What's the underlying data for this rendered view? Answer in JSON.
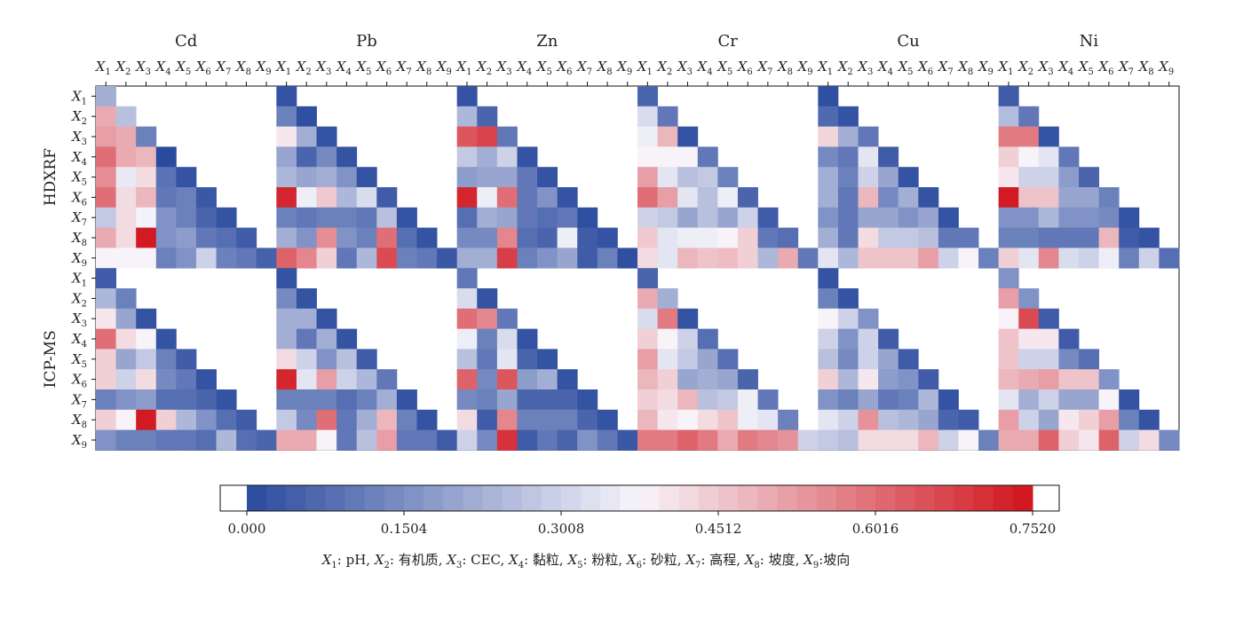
{
  "chart_data": {
    "type": "heatmap",
    "metals": [
      "Cd",
      "Pb",
      "Zn",
      "Cr",
      "Cu",
      "Ni"
    ],
    "methods": [
      "HDXRF",
      "ICP-MS"
    ],
    "variables": [
      "X1",
      "X2",
      "X3",
      "X4",
      "X5",
      "X6",
      "X7",
      "X8",
      "X9"
    ],
    "variable_prefix": "X",
    "variable_subscripts": [
      "1",
      "2",
      "3",
      "4",
      "5",
      "6",
      "7",
      "8",
      "9"
    ],
    "colorbar": {
      "vmin": 0.0,
      "vmax": 0.752,
      "ticks": [
        0.0,
        0.1504,
        0.3008,
        0.4512,
        0.6016,
        0.752
      ],
      "tick_labels": [
        "0.000",
        "0.1504",
        "0.3008",
        "0.4512",
        "0.6016",
        "0.7520"
      ],
      "color_low": "#2a4a9e",
      "color_mid": "#f7f5fb",
      "color_high": "#d0131c",
      "mid_value": 0.376
    },
    "legend_text": {
      "parts": [
        {
          "sub": "1",
          "label": ": pH, "
        },
        {
          "sub": "2",
          "label": ": 有机质, "
        },
        {
          "sub": "3",
          "label": ": CEC, "
        },
        {
          "sub": "4",
          "label": ": 黏粒, "
        },
        {
          "sub": "5",
          "label": ": 粉粒, "
        },
        {
          "sub": "6",
          "label": ": 砂粒, "
        },
        {
          "sub": "7",
          "label": ": 高程, "
        },
        {
          "sub": "8",
          "label": ": 坡度, "
        },
        {
          "sub": "9",
          "label": ":坡向"
        }
      ]
    },
    "matrices": {
      "HDXRF": {
        "Cd": [
          [
            0.22
          ],
          [
            0.5,
            0.26
          ],
          [
            0.52,
            0.5,
            0.12
          ],
          [
            0.6,
            0.5,
            0.48,
            0.0
          ],
          [
            0.55,
            0.35,
            0.42,
            0.09,
            0.02
          ],
          [
            0.6,
            0.42,
            0.48,
            0.1,
            0.12,
            0.03
          ],
          [
            0.28,
            0.42,
            0.37,
            0.16,
            0.12,
            0.06,
            0.02
          ],
          [
            0.5,
            0.42,
            0.74,
            0.16,
            0.18,
            0.1,
            0.08,
            0.04
          ],
          [
            0.38,
            0.38,
            0.38,
            0.12,
            0.16,
            0.3,
            0.12,
            0.1,
            0.05
          ]
        ],
        "Pb": [
          [
            0.02
          ],
          [
            0.12,
            0.01
          ],
          [
            0.4,
            0.22,
            0.02
          ],
          [
            0.2,
            0.06,
            0.14,
            0.02
          ],
          [
            0.24,
            0.2,
            0.22,
            0.16,
            0.02
          ],
          [
            0.72,
            0.36,
            0.45,
            0.24,
            0.32,
            0.04
          ],
          [
            0.12,
            0.1,
            0.12,
            0.12,
            0.1,
            0.26,
            0.02
          ],
          [
            0.22,
            0.16,
            0.55,
            0.16,
            0.12,
            0.6,
            0.08,
            0.02
          ],
          [
            0.62,
            0.56,
            0.44,
            0.1,
            0.24,
            0.66,
            0.12,
            0.1,
            0.03
          ]
        ],
        "Zn": [
          [
            0.02
          ],
          [
            0.24,
            0.06
          ],
          [
            0.64,
            0.67,
            0.1
          ],
          [
            0.28,
            0.22,
            0.3,
            0.02
          ],
          [
            0.18,
            0.2,
            0.2,
            0.1,
            0.02
          ],
          [
            0.72,
            0.36,
            0.6,
            0.1,
            0.16,
            0.02
          ],
          [
            0.08,
            0.22,
            0.2,
            0.1,
            0.08,
            0.1,
            0.01
          ],
          [
            0.14,
            0.14,
            0.56,
            0.08,
            0.06,
            0.36,
            0.04,
            0.02
          ],
          [
            0.22,
            0.22,
            0.68,
            0.12,
            0.16,
            0.2,
            0.04,
            0.12,
            0.01
          ]
        ],
        "Cr": [
          [
            0.06
          ],
          [
            0.32,
            0.1
          ],
          [
            0.36,
            0.48,
            0.02
          ],
          [
            0.38,
            0.38,
            0.38,
            0.1
          ],
          [
            0.52,
            0.34,
            0.26,
            0.28,
            0.12
          ],
          [
            0.6,
            0.52,
            0.34,
            0.26,
            0.36,
            0.06
          ],
          [
            0.3,
            0.28,
            0.2,
            0.26,
            0.2,
            0.3,
            0.04
          ],
          [
            0.45,
            0.34,
            0.36,
            0.36,
            0.38,
            0.44,
            0.1,
            0.08
          ],
          [
            0.42,
            0.34,
            0.48,
            0.46,
            0.47,
            0.44,
            0.24,
            0.5,
            0.1
          ]
        ],
        "Cu": [
          [
            0.01
          ],
          [
            0.07,
            0.02
          ],
          [
            0.43,
            0.22,
            0.1
          ],
          [
            0.14,
            0.1,
            0.34,
            0.04
          ],
          [
            0.22,
            0.12,
            0.3,
            0.2,
            0.02
          ],
          [
            0.22,
            0.1,
            0.48,
            0.14,
            0.22,
            0.02
          ],
          [
            0.16,
            0.1,
            0.2,
            0.2,
            0.16,
            0.2,
            0.02
          ],
          [
            0.22,
            0.1,
            0.42,
            0.28,
            0.28,
            0.26,
            0.1,
            0.1
          ],
          [
            0.34,
            0.24,
            0.46,
            0.46,
            0.46,
            0.52,
            0.3,
            0.38,
            0.12
          ]
        ],
        "Ni": [
          [
            0.04
          ],
          [
            0.25,
            0.1
          ],
          [
            0.58,
            0.58,
            0.02
          ],
          [
            0.44,
            0.38,
            0.34,
            0.1
          ],
          [
            0.4,
            0.3,
            0.3,
            0.18,
            0.06
          ],
          [
            0.74,
            0.46,
            0.46,
            0.2,
            0.2,
            0.12
          ],
          [
            0.16,
            0.16,
            0.24,
            0.16,
            0.16,
            0.14,
            0.02
          ],
          [
            0.12,
            0.12,
            0.1,
            0.1,
            0.1,
            0.48,
            0.04,
            0.02
          ],
          [
            0.44,
            0.34,
            0.56,
            0.32,
            0.3,
            0.36,
            0.12,
            0.3,
            0.08
          ]
        ]
      },
      "ICP-MS": {
        "Cd": [
          [
            0.04
          ],
          [
            0.24,
            0.12
          ],
          [
            0.4,
            0.2,
            0.02
          ],
          [
            0.6,
            0.42,
            0.38,
            0.02
          ],
          [
            0.44,
            0.2,
            0.28,
            0.12,
            0.04
          ],
          [
            0.44,
            0.3,
            0.42,
            0.14,
            0.1,
            0.02
          ],
          [
            0.12,
            0.16,
            0.18,
            0.08,
            0.08,
            0.06,
            0.02
          ],
          [
            0.44,
            0.38,
            0.74,
            0.44,
            0.24,
            0.16,
            0.08,
            0.04
          ],
          [
            0.16,
            0.12,
            0.12,
            0.1,
            0.1,
            0.08,
            0.24,
            0.08,
            0.06
          ]
        ],
        "Pb": [
          [
            0.02
          ],
          [
            0.14,
            0.02
          ],
          [
            0.22,
            0.22,
            0.02
          ],
          [
            0.22,
            0.1,
            0.22,
            0.02
          ],
          [
            0.42,
            0.3,
            0.16,
            0.26,
            0.04
          ],
          [
            0.72,
            0.34,
            0.52,
            0.3,
            0.24,
            0.1
          ],
          [
            0.12,
            0.12,
            0.12,
            0.08,
            0.12,
            0.22,
            0.02
          ],
          [
            0.28,
            0.14,
            0.6,
            0.1,
            0.22,
            0.48,
            0.12,
            0.02
          ],
          [
            0.5,
            0.5,
            0.38,
            0.1,
            0.26,
            0.52,
            0.1,
            0.1,
            0.04
          ]
        ],
        "Zn": [
          [
            0.1
          ],
          [
            0.32,
            0.02
          ],
          [
            0.6,
            0.56,
            0.1
          ],
          [
            0.36,
            0.12,
            0.32,
            0.02
          ],
          [
            0.26,
            0.1,
            0.34,
            0.06,
            0.02
          ],
          [
            0.62,
            0.14,
            0.64,
            0.18,
            0.22,
            0.02
          ],
          [
            0.14,
            0.12,
            0.2,
            0.06,
            0.06,
            0.06,
            0.02
          ],
          [
            0.42,
            0.04,
            0.56,
            0.12,
            0.12,
            0.12,
            0.06,
            0.02
          ],
          [
            0.3,
            0.14,
            0.7,
            0.04,
            0.1,
            0.06,
            0.16,
            0.1,
            0.03
          ]
        ],
        "Cr": [
          [
            0.06
          ],
          [
            0.5,
            0.22
          ],
          [
            0.32,
            0.58,
            0.02
          ],
          [
            0.44,
            0.38,
            0.3,
            0.08
          ],
          [
            0.52,
            0.34,
            0.28,
            0.2,
            0.08
          ],
          [
            0.48,
            0.44,
            0.2,
            0.22,
            0.2,
            0.06
          ],
          [
            0.44,
            0.42,
            0.48,
            0.26,
            0.28,
            0.36,
            0.1
          ],
          [
            0.48,
            0.4,
            0.38,
            0.42,
            0.46,
            0.36,
            0.34,
            0.12
          ],
          [
            0.58,
            0.58,
            0.62,
            0.58,
            0.5,
            0.58,
            0.56,
            0.54,
            0.3
          ]
        ],
        "Cu": [
          [
            0.02
          ],
          [
            0.12,
            0.02
          ],
          [
            0.38,
            0.3,
            0.16
          ],
          [
            0.3,
            0.16,
            0.3,
            0.04
          ],
          [
            0.26,
            0.14,
            0.3,
            0.2,
            0.04
          ],
          [
            0.44,
            0.24,
            0.4,
            0.18,
            0.16,
            0.04
          ],
          [
            0.16,
            0.12,
            0.2,
            0.1,
            0.12,
            0.24,
            0.02
          ],
          [
            0.34,
            0.3,
            0.54,
            0.26,
            0.24,
            0.2,
            0.06,
            0.04
          ],
          [
            0.28,
            0.26,
            0.42,
            0.42,
            0.42,
            0.48,
            0.3,
            0.38,
            0.12
          ]
        ],
        "Ni": [
          [
            0.16
          ],
          [
            0.52,
            0.16
          ],
          [
            0.38,
            0.66,
            0.04
          ],
          [
            0.46,
            0.4,
            0.4,
            0.04
          ],
          [
            0.46,
            0.3,
            0.3,
            0.14,
            0.08
          ],
          [
            0.48,
            0.5,
            0.52,
            0.46,
            0.46,
            0.16
          ],
          [
            0.34,
            0.22,
            0.3,
            0.2,
            0.2,
            0.38,
            0.02
          ],
          [
            0.52,
            0.3,
            0.2,
            0.4,
            0.44,
            0.52,
            0.12,
            0.02
          ],
          [
            0.5,
            0.5,
            0.62,
            0.44,
            0.4,
            0.62,
            0.3,
            0.42,
            0.14
          ]
        ]
      }
    }
  }
}
